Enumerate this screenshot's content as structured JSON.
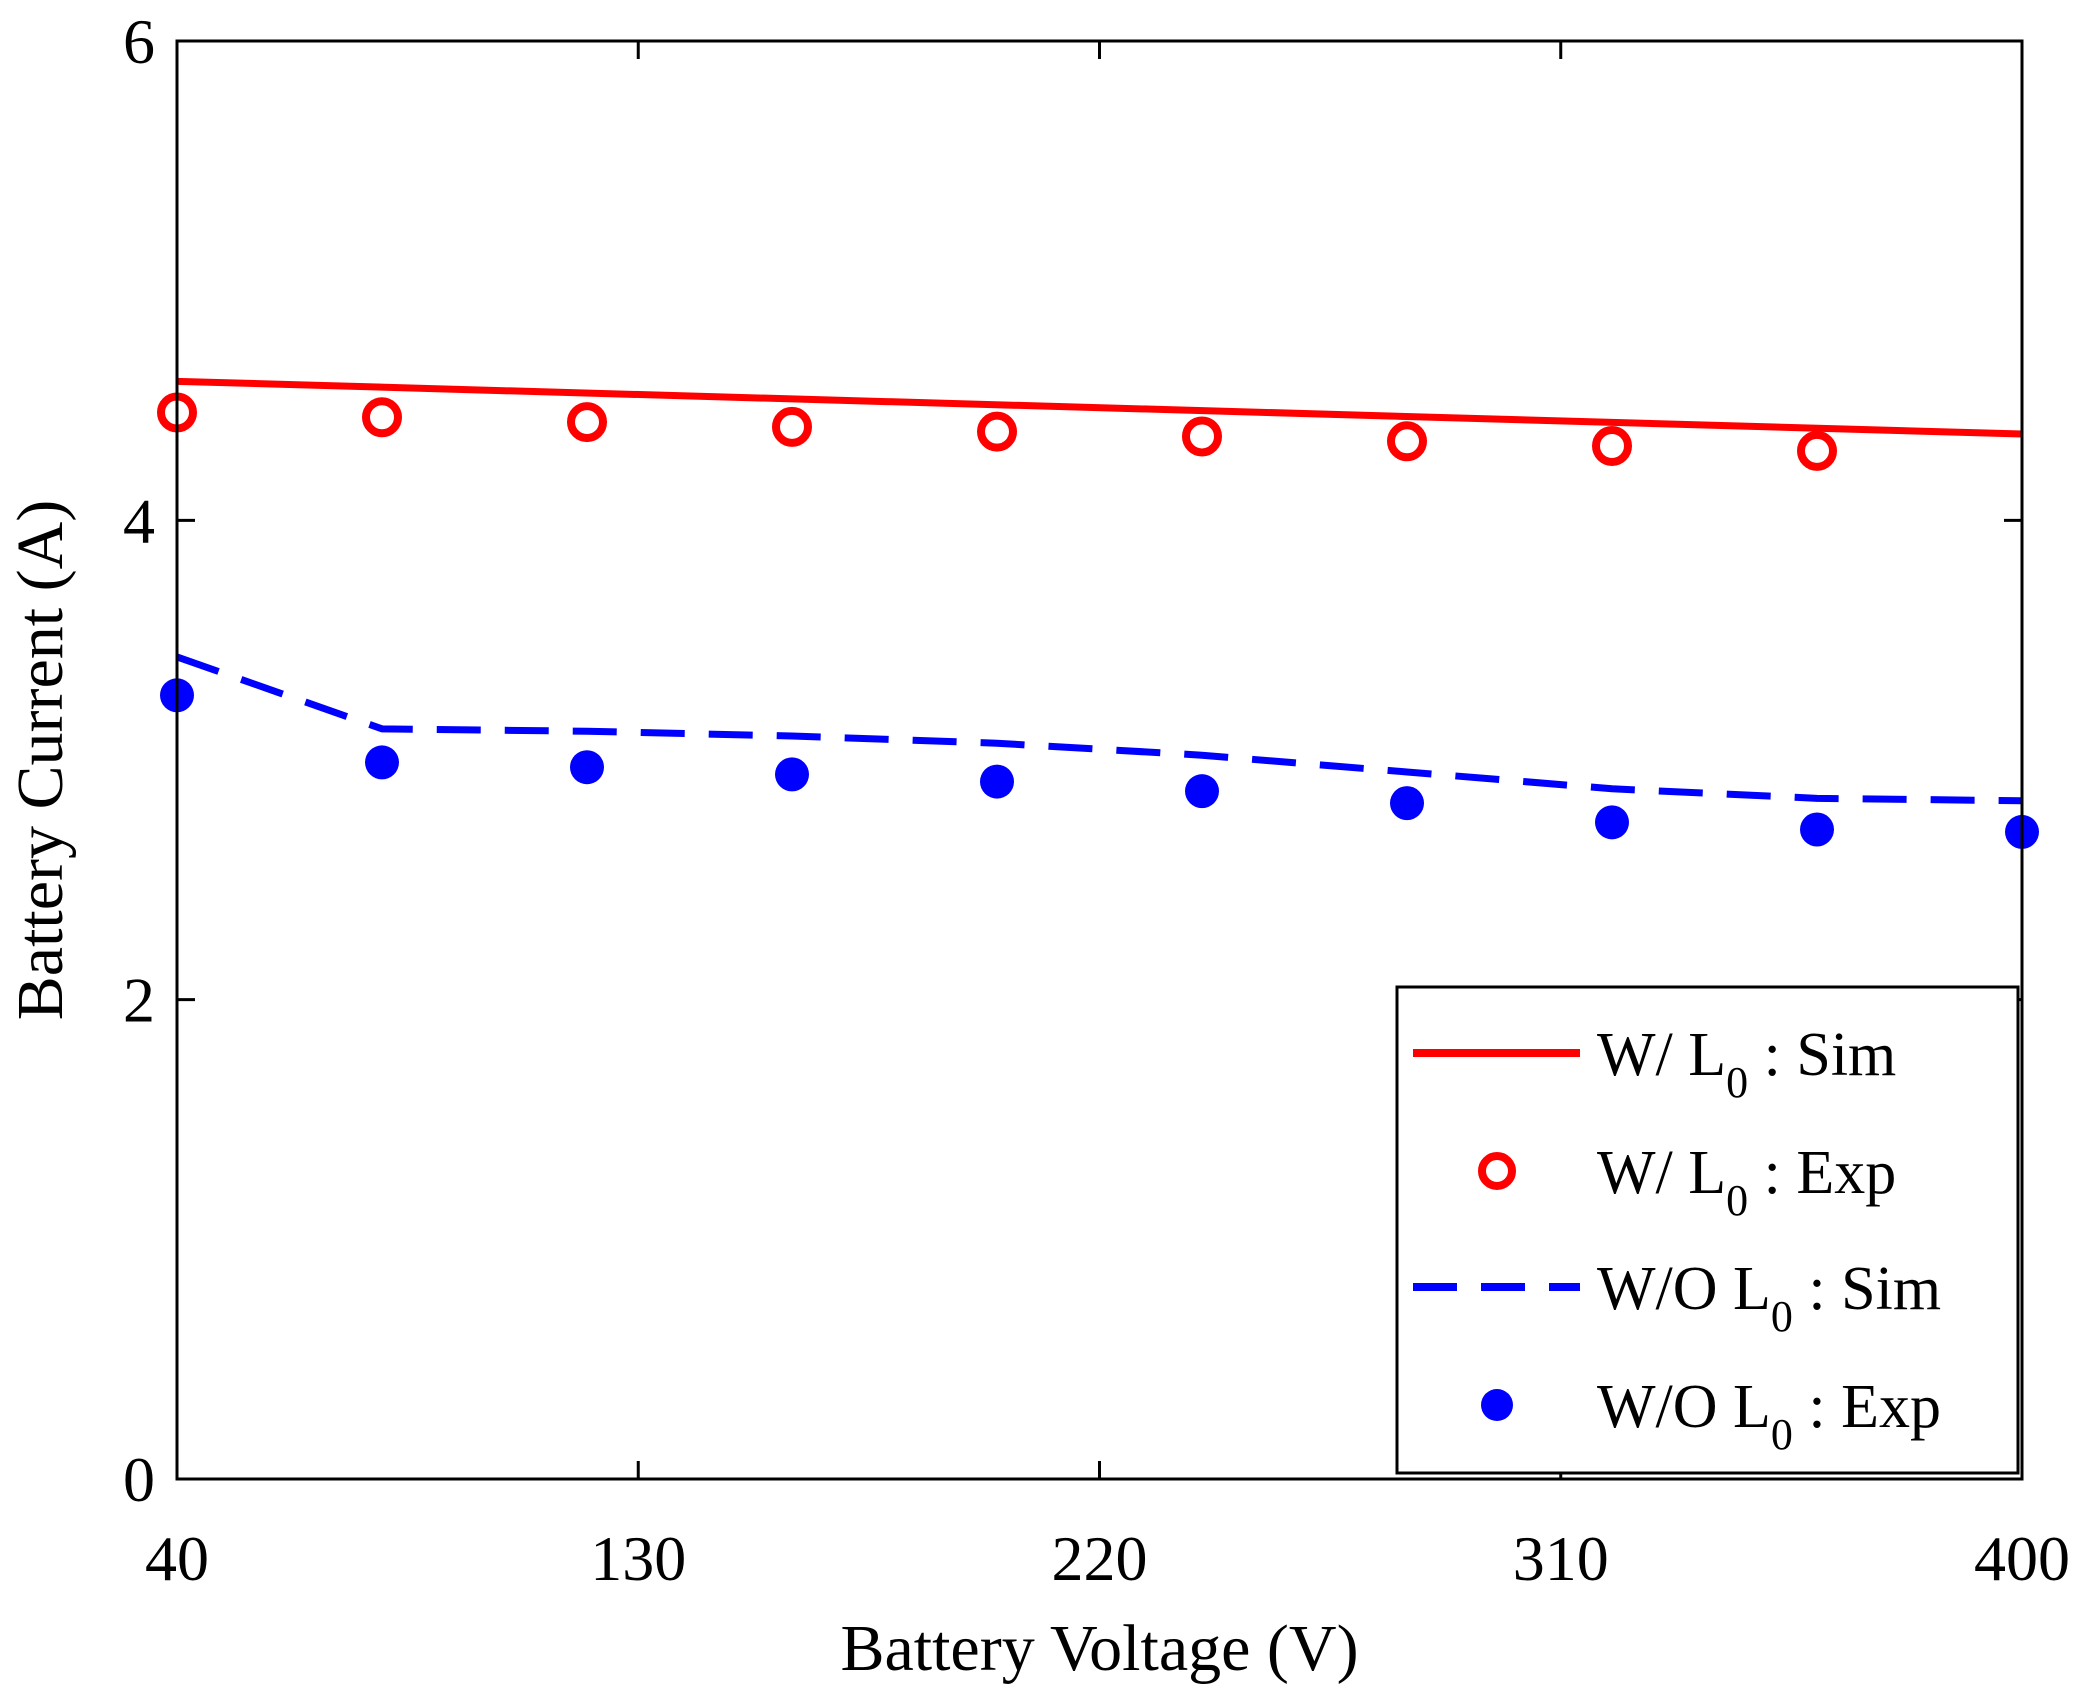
{
  "chart_data": {
    "type": "line",
    "title": "",
    "xlabel": "Battery Voltage (V)",
    "ylabel": "Battery Current (A)",
    "xlim": [
      40,
      400
    ],
    "ylim": [
      0,
      6
    ],
    "xticks": [
      40,
      130,
      220,
      310,
      400
    ],
    "yticks": [
      0,
      2,
      4,
      6
    ],
    "xtick_labels": [
      "40",
      "130",
      "220",
      "310",
      "400"
    ],
    "ytick_labels": [
      "0",
      "2",
      "4",
      "6"
    ],
    "grid": false,
    "legend_position": "bottom-right",
    "series": [
      {
        "name": "W/ L0 : Sim",
        "label_main": "W/ L",
        "label_sub": "0",
        "label_tail": " : Sim",
        "kind": "line",
        "style": "solid",
        "color": "#ff0000",
        "x": [
          40,
          400
        ],
        "y": [
          4.58,
          4.36
        ]
      },
      {
        "name": "W/ L0 : Exp",
        "label_main": "W/ L",
        "label_sub": "0",
        "label_tail": " : Exp",
        "kind": "marker",
        "marker": "open-circle",
        "color": "#ff0000",
        "x": [
          40,
          80,
          120,
          160,
          200,
          240,
          280,
          320,
          360
        ],
        "y": [
          4.45,
          4.43,
          4.41,
          4.39,
          4.37,
          4.35,
          4.33,
          4.31,
          4.29
        ]
      },
      {
        "name": "W/O L0 : Sim",
        "label_main": "W/O L",
        "label_sub": "0",
        "label_tail": " : Sim",
        "kind": "line",
        "style": "dashed",
        "color": "#0000ff",
        "x": [
          40,
          80,
          120,
          160,
          200,
          240,
          280,
          320,
          360,
          400
        ],
        "y": [
          3.43,
          3.13,
          3.12,
          3.1,
          3.07,
          3.02,
          2.95,
          2.88,
          2.84,
          2.83
        ]
      },
      {
        "name": "W/O L0 : Exp",
        "label_main": "W/O L",
        "label_sub": "0",
        "label_tail": " : Exp",
        "kind": "marker",
        "marker": "filled-circle",
        "color": "#0000ff",
        "x": [
          40,
          80,
          120,
          160,
          200,
          240,
          280,
          320,
          360,
          400
        ],
        "y": [
          3.27,
          2.99,
          2.97,
          2.94,
          2.91,
          2.87,
          2.82,
          2.74,
          2.71,
          2.7
        ]
      }
    ]
  }
}
